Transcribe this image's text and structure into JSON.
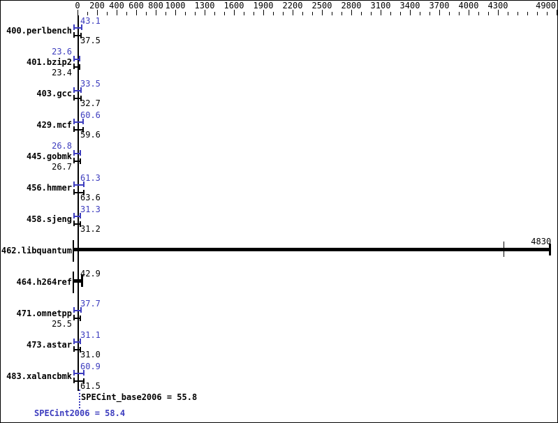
{
  "chart_data": {
    "type": "bar",
    "orientation": "horizontal",
    "title": "",
    "xlabel": "",
    "ylabel": "",
    "grid": false,
    "x_axis": {
      "min": 0,
      "max": 4900,
      "tick_step": 100,
      "labeled_ticks": [
        0,
        200,
        400,
        600,
        800,
        1000,
        1300,
        1600,
        1900,
        2200,
        2500,
        2800,
        3100,
        3400,
        3700,
        4000,
        4300,
        4900
      ]
    },
    "series": [
      {
        "name": "SPECint2006 (peak)",
        "color_key": "peak_blue"
      },
      {
        "name": "SPECint_base2006 (base)",
        "color_key": "bar_black"
      }
    ],
    "benchmarks": [
      {
        "name": "400.perlbench",
        "peak": 43.1,
        "base": 37.5,
        "peak_label": "43.1",
        "base_label": "37.5",
        "peak_side": "right",
        "base_side": "right",
        "single": false
      },
      {
        "name": "401.bzip2",
        "peak": 23.6,
        "base": 23.4,
        "peak_label": "23.6",
        "base_label": "23.4",
        "peak_side": "left",
        "base_side": "left",
        "single": false
      },
      {
        "name": "403.gcc",
        "peak": 33.5,
        "base": 32.7,
        "peak_label": "33.5",
        "base_label": "32.7",
        "peak_side": "right",
        "base_side": "right",
        "single": false
      },
      {
        "name": "429.mcf",
        "peak": 60.6,
        "base": 59.6,
        "peak_label": "60.6",
        "base_label": "59.6",
        "peak_side": "right",
        "base_side": "right",
        "single": false
      },
      {
        "name": "445.gobmk",
        "peak": 26.8,
        "base": 26.7,
        "peak_label": "26.8",
        "base_label": "26.7",
        "peak_side": "left",
        "base_side": "left",
        "single": false
      },
      {
        "name": "456.hmmer",
        "peak": 61.3,
        "base": 63.6,
        "peak_label": "61.3",
        "base_label": "63.6",
        "peak_side": "right",
        "base_side": "right",
        "single": false
      },
      {
        "name": "458.sjeng",
        "peak": 31.3,
        "base": 31.2,
        "peak_label": "31.3",
        "base_label": "31.2",
        "peak_side": "right",
        "base_side": "right",
        "single": false
      },
      {
        "name": "462.libquantum",
        "base": 4830,
        "base_label": "4830",
        "base_side": "bar_end",
        "single": true,
        "marker_value": 4360
      },
      {
        "name": "464.h264ref",
        "base": 42.9,
        "base_label": "42.9",
        "base_side": "right",
        "single": true
      },
      {
        "name": "471.omnetpp",
        "peak": 37.7,
        "base": 25.5,
        "peak_label": "37.7",
        "base_label": "25.5",
        "peak_side": "right",
        "base_side": "left",
        "single": false
      },
      {
        "name": "473.astar",
        "peak": 31.1,
        "base": 31.0,
        "peak_label": "31.1",
        "base_label": "31.0",
        "peak_side": "right",
        "base_side": "right",
        "single": false
      },
      {
        "name": "483.xalancbmk",
        "peak": 60.9,
        "base": 61.5,
        "peak_label": "60.9",
        "base_label": "61.5",
        "peak_side": "right",
        "base_side": "right",
        "single": false
      }
    ],
    "summary": {
      "base_text": "SPECint_base2006 = 55.8",
      "base_value": 55.8,
      "peak_text": "SPECint2006 = 58.4",
      "peak_value": 58.4
    },
    "colors": {
      "peak_blue": "#3c3cbe",
      "bar_black": "#000000",
      "background": "#ffffff",
      "border": "#000000"
    }
  }
}
